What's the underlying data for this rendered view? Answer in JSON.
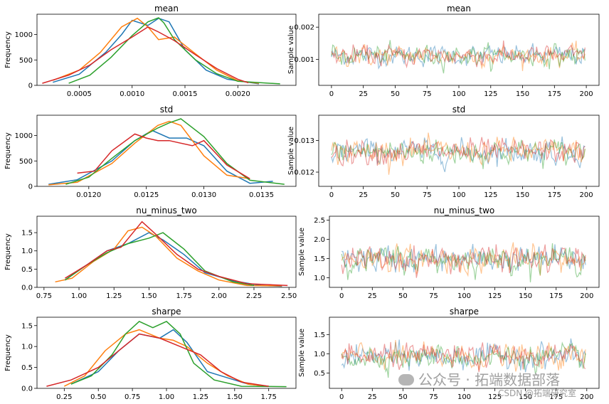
{
  "colors": {
    "c0": "#1f77b4",
    "c1": "#ff7f0e",
    "c2": "#2ca02c",
    "c3": "#d62728"
  },
  "watermark": {
    "line1": "公众号 · 拓端数据部落",
    "line2": "CSDN @拓端研究室"
  },
  "chart_data": [
    {
      "type": "line",
      "title": "mean",
      "xlabel": "",
      "ylabel": "Frequency",
      "xlim": [
        0.0001,
        0.00255
      ],
      "ylim": [
        0,
        1400
      ],
      "xticks": [
        0.0005,
        0.001,
        0.0015,
        0.002
      ],
      "xticklabels": [
        "0.0005",
        "0.0010",
        "0.0015",
        "0.0020"
      ],
      "yticks": [
        0,
        500,
        1000
      ],
      "yticklabels": [
        "0",
        "500",
        "1000"
      ],
      "series": [
        {
          "color": "c0",
          "x": [
            0.00025,
            0.0005,
            0.00075,
            0.0009,
            0.001,
            0.00115,
            0.00125,
            0.00135,
            0.0015,
            0.0017,
            0.0019,
            0.0022
          ],
          "y": [
            60,
            220,
            650,
            1000,
            1280,
            1180,
            1320,
            1250,
            700,
            300,
            120,
            30
          ]
        },
        {
          "color": "c1",
          "x": [
            0.00025,
            0.0005,
            0.0007,
            0.0009,
            0.00105,
            0.00115,
            0.00125,
            0.0014,
            0.0016,
            0.0018,
            0.002,
            0.0022
          ],
          "y": [
            100,
            300,
            650,
            1150,
            1320,
            1150,
            900,
            950,
            620,
            300,
            90,
            40
          ]
        },
        {
          "color": "c2",
          "x": [
            0.0004,
            0.0006,
            0.0008,
            0.001,
            0.00115,
            0.00125,
            0.0013,
            0.0014,
            0.0016,
            0.0018,
            0.002,
            0.0024
          ],
          "y": [
            40,
            200,
            550,
            980,
            1250,
            1330,
            1230,
            900,
            500,
            230,
            80,
            30
          ]
        },
        {
          "color": "c3",
          "x": [
            0.00015,
            0.0004,
            0.0006,
            0.0008,
            0.001,
            0.00115,
            0.00125,
            0.0014,
            0.0016,
            0.0018,
            0.002,
            0.0021
          ],
          "y": [
            40,
            200,
            400,
            700,
            950,
            1150,
            1050,
            880,
            600,
            330,
            120,
            50
          ]
        }
      ]
    },
    {
      "type": "line",
      "title": "mean",
      "xlabel": "",
      "ylabel": "Sample value",
      "xlim": [
        -10,
        210
      ],
      "ylim": [
        0.0002,
        0.0024
      ],
      "xticks": [
        0,
        25,
        50,
        75,
        100,
        125,
        150,
        175,
        200
      ],
      "xticklabels": [
        "0",
        "25",
        "50",
        "75",
        "100",
        "125",
        "150",
        "175",
        "200"
      ],
      "yticks": [
        0.001,
        0.002
      ],
      "yticklabels": [
        "0.001",
        "0.002"
      ],
      "traces": {
        "n": 200,
        "center": 0.00112,
        "spread": 0.00028,
        "alpha": 0.45
      }
    },
    {
      "type": "line",
      "title": "std",
      "xlabel": "",
      "ylabel": "Frequency",
      "xlim": [
        0.01155,
        0.0138
      ],
      "ylim": [
        0,
        1400
      ],
      "xticks": [
        0.012,
        0.0125,
        0.013,
        0.0135
      ],
      "xticklabels": [
        "0.0120",
        "0.0125",
        "0.0130",
        "0.0135"
      ],
      "yticks": [
        0,
        500,
        1000
      ],
      "yticklabels": [
        "0",
        "500",
        "1000"
      ],
      "series": [
        {
          "color": "c0",
          "x": [
            0.01165,
            0.0119,
            0.0122,
            0.0124,
            0.01255,
            0.0127,
            0.01285,
            0.013,
            0.0132,
            0.0134,
            0.0136
          ],
          "y": [
            40,
            130,
            500,
            900,
            1100,
            950,
            950,
            800,
            300,
            60,
            100
          ]
        },
        {
          "color": "c1",
          "x": [
            0.01165,
            0.0119,
            0.0122,
            0.0124,
            0.0126,
            0.0127,
            0.0128,
            0.013,
            0.0132,
            0.0134
          ],
          "y": [
            30,
            80,
            450,
            850,
            1200,
            1280,
            1200,
            600,
            220,
            150
          ]
        },
        {
          "color": "c2",
          "x": [
            0.0118,
            0.012,
            0.0122,
            0.0124,
            0.0126,
            0.0127,
            0.0128,
            0.013,
            0.0132,
            0.0134,
            0.0137
          ],
          "y": [
            40,
            180,
            550,
            900,
            1150,
            1250,
            1330,
            980,
            450,
            120,
            40
          ]
        },
        {
          "color": "c3",
          "x": [
            0.0119,
            0.01205,
            0.0122,
            0.0124,
            0.0125,
            0.0126,
            0.0127,
            0.0129,
            0.013,
            0.0132,
            0.0134
          ],
          "y": [
            260,
            300,
            700,
            1030,
            950,
            900,
            900,
            800,
            900,
            420,
            150
          ]
        }
      ]
    },
    {
      "type": "line",
      "title": "std",
      "xlabel": "",
      "ylabel": "Sample value",
      "xlim": [
        -10,
        210
      ],
      "ylim": [
        0.01155,
        0.0138
      ],
      "xticks": [
        0,
        25,
        50,
        75,
        100,
        125,
        150,
        175,
        200
      ],
      "xticklabels": [
        "0",
        "25",
        "50",
        "75",
        "100",
        "125",
        "150",
        "175",
        "200"
      ],
      "yticks": [
        0.012,
        0.013
      ],
      "yticklabels": [
        "0.012",
        "0.013"
      ],
      "traces": {
        "n": 200,
        "center": 0.01265,
        "spread": 0.00035,
        "alpha": 0.45
      }
    },
    {
      "type": "line",
      "title": "nu_minus_two",
      "xlabel": "",
      "ylabel": "Frequency",
      "xlim": [
        0.7,
        2.55
      ],
      "ylim": [
        0,
        1.95
      ],
      "xticks": [
        0.75,
        1.0,
        1.25,
        1.5,
        1.75,
        2.0,
        2.25,
        2.5
      ],
      "xticklabels": [
        "0.75",
        "1.00",
        "1.25",
        "1.50",
        "1.75",
        "2.00",
        "2.25",
        "2.50"
      ],
      "yticks": [
        0,
        0.5,
        1.0,
        1.5
      ],
      "yticklabels": [
        "0.0",
        "0.5",
        "1.0",
        "1.5"
      ],
      "series": [
        {
          "color": "c0",
          "x": [
            0.9,
            1.05,
            1.2,
            1.35,
            1.5,
            1.6,
            1.75,
            1.9,
            2.1,
            2.3,
            2.45
          ],
          "y": [
            0.2,
            0.6,
            1.0,
            1.2,
            1.5,
            1.3,
            0.9,
            0.4,
            0.18,
            0.05,
            0.03
          ]
        },
        {
          "color": "c1",
          "x": [
            0.83,
            0.95,
            1.1,
            1.25,
            1.35,
            1.45,
            1.55,
            1.7,
            1.85,
            2.0,
            2.2,
            2.45
          ],
          "y": [
            0.15,
            0.25,
            0.7,
            1.05,
            1.55,
            1.65,
            1.4,
            0.8,
            0.45,
            0.2,
            0.05,
            0.04
          ]
        },
        {
          "color": "c2",
          "x": [
            0.9,
            1.05,
            1.2,
            1.35,
            1.5,
            1.6,
            1.75,
            1.9,
            2.1,
            2.25
          ],
          "y": [
            0.2,
            0.6,
            0.95,
            1.2,
            1.35,
            1.5,
            1.05,
            0.45,
            0.15,
            0.05
          ]
        },
        {
          "color": "c3",
          "x": [
            0.9,
            1.05,
            1.2,
            1.3,
            1.45,
            1.55,
            1.7,
            1.85,
            2.0,
            2.2,
            2.49
          ],
          "y": [
            0.25,
            0.6,
            1.0,
            1.1,
            1.8,
            1.45,
            0.9,
            0.5,
            0.3,
            0.1,
            0.05
          ]
        }
      ]
    },
    {
      "type": "line",
      "title": "nu_minus_two",
      "xlabel": "",
      "ylabel": "Sample value",
      "xlim": [
        -10,
        210
      ],
      "ylim": [
        0.75,
        2.6
      ],
      "xticks": [
        0,
        25,
        50,
        75,
        100,
        125,
        150,
        175,
        200
      ],
      "xticklabels": [
        "0",
        "25",
        "50",
        "75",
        "100",
        "125",
        "150",
        "175",
        "200"
      ],
      "yticks": [
        1.0,
        1.5,
        2.0,
        2.5
      ],
      "yticklabels": [
        "1.0",
        "1.5",
        "2.0",
        "2.5"
      ],
      "traces": {
        "n": 200,
        "center": 1.48,
        "spread": 0.3,
        "alpha": 0.45
      }
    },
    {
      "type": "line",
      "title": "sharpe",
      "xlabel": "",
      "ylabel": "Frequency",
      "xlim": [
        0.05,
        1.95
      ],
      "ylim": [
        0,
        1.7
      ],
      "xticks": [
        0.25,
        0.5,
        0.75,
        1.0,
        1.25,
        1.5,
        1.75
      ],
      "xticklabels": [
        "0.25",
        "0.50",
        "0.75",
        "1.00",
        "1.25",
        "1.50",
        "1.75"
      ],
      "yticks": [
        0,
        0.5,
        1.0,
        1.5
      ],
      "yticklabels": [
        "0.0",
        "0.5",
        "1.0",
        "1.5"
      ],
      "series": [
        {
          "color": "c0",
          "x": [
            0.3,
            0.5,
            0.65,
            0.8,
            0.95,
            1.05,
            1.15,
            1.3,
            1.45,
            1.6,
            1.75
          ],
          "y": [
            0.1,
            0.4,
            0.9,
            1.3,
            1.2,
            1.4,
            1.1,
            0.4,
            0.25,
            0.1,
            0.05
          ]
        },
        {
          "color": "c1",
          "x": [
            0.25,
            0.4,
            0.55,
            0.7,
            0.8,
            0.95,
            1.05,
            1.15,
            1.3,
            1.45,
            1.6,
            1.75
          ],
          "y": [
            0.05,
            0.3,
            0.9,
            1.3,
            1.4,
            1.2,
            1.15,
            1.0,
            0.6,
            0.3,
            0.1,
            0.05
          ]
        },
        {
          "color": "c2",
          "x": [
            0.3,
            0.45,
            0.6,
            0.7,
            0.8,
            0.9,
            1.0,
            1.1,
            1.2,
            1.35,
            1.55,
            1.88
          ],
          "y": [
            0.1,
            0.3,
            0.8,
            1.3,
            1.6,
            1.45,
            1.6,
            1.3,
            0.6,
            0.2,
            0.05,
            0.04
          ]
        },
        {
          "color": "c3",
          "x": [
            0.12,
            0.3,
            0.5,
            0.65,
            0.8,
            0.95,
            1.1,
            1.25,
            1.4,
            1.55,
            1.75
          ],
          "y": [
            0.05,
            0.2,
            0.5,
            0.9,
            1.3,
            1.2,
            1.0,
            0.8,
            0.4,
            0.15,
            0.05
          ]
        }
      ]
    },
    {
      "type": "line",
      "title": "sharpe",
      "xlabel": "",
      "ylabel": "Sample value",
      "xlim": [
        -10,
        210
      ],
      "ylim": [
        0.1,
        1.95
      ],
      "xticks": [
        0,
        25,
        50,
        75,
        100,
        125,
        150,
        175,
        200
      ],
      "xticklabels": [
        "0",
        "25",
        "50",
        "75",
        "100",
        "125",
        "150",
        "175",
        "200"
      ],
      "yticks": [
        0.5,
        1.0,
        1.5
      ],
      "yticklabels": [
        "0.5",
        "1.0",
        "1.5"
      ],
      "traces": {
        "n": 200,
        "center": 0.92,
        "spread": 0.28,
        "alpha": 0.45
      }
    }
  ]
}
